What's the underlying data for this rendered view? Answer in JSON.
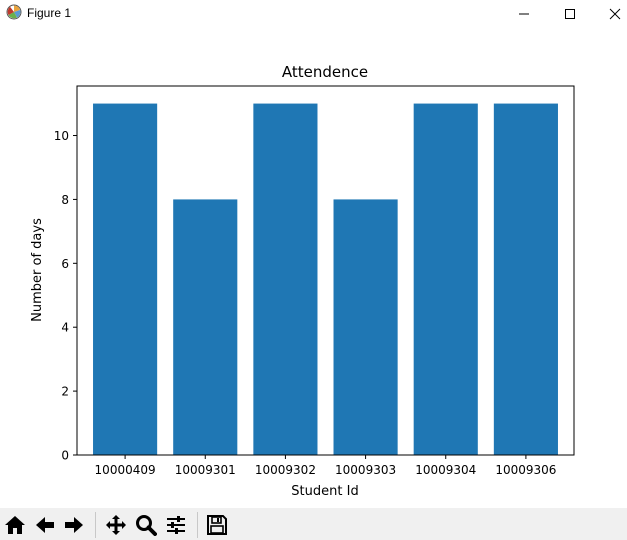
{
  "window": {
    "title": "Figure 1",
    "icons": {
      "app": "matplotlib-icon",
      "minimize": "minimize-icon",
      "maximize": "maximize-icon",
      "close": "close-icon"
    }
  },
  "toolbar": {
    "buttons": [
      {
        "name": "home",
        "icon": "home-icon"
      },
      {
        "name": "back",
        "icon": "arrow-left-icon"
      },
      {
        "name": "forward",
        "icon": "arrow-right-icon"
      },
      {
        "name": "pan",
        "icon": "move-icon"
      },
      {
        "name": "zoom",
        "icon": "zoom-icon"
      },
      {
        "name": "configure-subplots",
        "icon": "sliders-icon"
      },
      {
        "name": "save",
        "icon": "save-icon"
      }
    ]
  },
  "chart_data": {
    "type": "bar",
    "title": "Attendence",
    "xlabel": "Student Id",
    "ylabel": "Number of days",
    "categories": [
      "10000409",
      "10009301",
      "10009302",
      "10009303",
      "10009304",
      "10009306"
    ],
    "values": [
      11,
      8,
      11,
      8,
      11,
      11
    ],
    "ylim": [
      0,
      11.55
    ],
    "yticks": [
      0,
      2,
      4,
      6,
      8,
      10
    ],
    "bar_color": "#1f77b4",
    "grid": false
  }
}
